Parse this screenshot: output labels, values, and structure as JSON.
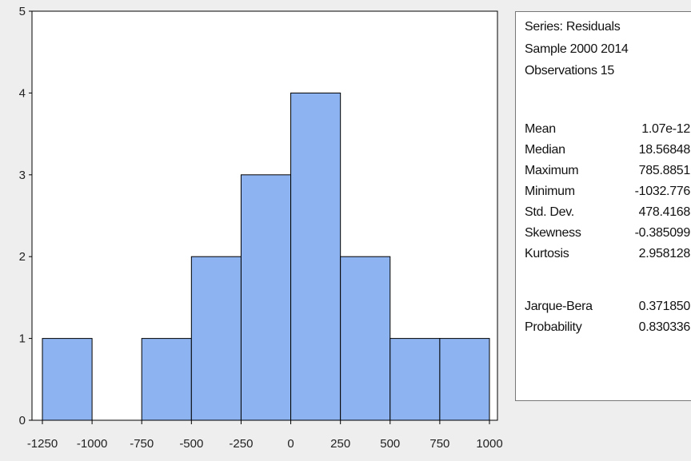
{
  "chart_data": {
    "type": "bar",
    "subtype": "histogram",
    "bins": [
      {
        "from": -1250,
        "to": -1000,
        "count": 1
      },
      {
        "from": -1000,
        "to": -750,
        "count": 0
      },
      {
        "from": -750,
        "to": -500,
        "count": 1
      },
      {
        "from": -500,
        "to": -250,
        "count": 2
      },
      {
        "from": -250,
        "to": 0,
        "count": 3
      },
      {
        "from": 0,
        "to": 250,
        "count": 4
      },
      {
        "from": 250,
        "to": 500,
        "count": 2
      },
      {
        "from": 500,
        "to": 750,
        "count": 1
      },
      {
        "from": 750,
        "to": 1000,
        "count": 1
      }
    ],
    "xlim": [
      -1250,
      1000
    ],
    "ylim": [
      0,
      5
    ],
    "x_ticks": [
      -1250,
      -1000,
      -750,
      -500,
      -250,
      0,
      250,
      500,
      750,
      1000
    ],
    "y_ticks": [
      0,
      1,
      2,
      3,
      4,
      5
    ],
    "bar_color": "#8db4f0",
    "bar_edge_color": "#000000",
    "grid": false,
    "legend": "none"
  },
  "stats_panel": {
    "header": [
      "Series: Residuals",
      "Sample 2000 2014",
      "Observations 15"
    ],
    "stats": [
      {
        "label": "Mean",
        "value": "1.07e-12"
      },
      {
        "label": "Median",
        "value": "18.56848"
      },
      {
        "label": "Maximum",
        "value": "785.8851"
      },
      {
        "label": "Minimum",
        "value": "-1032.776"
      },
      {
        "label": "Std. Dev.",
        "value": "478.4168"
      },
      {
        "label": "Skewness",
        "value": "-0.385099"
      },
      {
        "label": "Kurtosis",
        "value": "2.958128"
      }
    ],
    "tests": [
      {
        "label": "Jarque-Bera",
        "value": "0.371850"
      },
      {
        "label": "Probability",
        "value": "0.830336"
      }
    ]
  }
}
